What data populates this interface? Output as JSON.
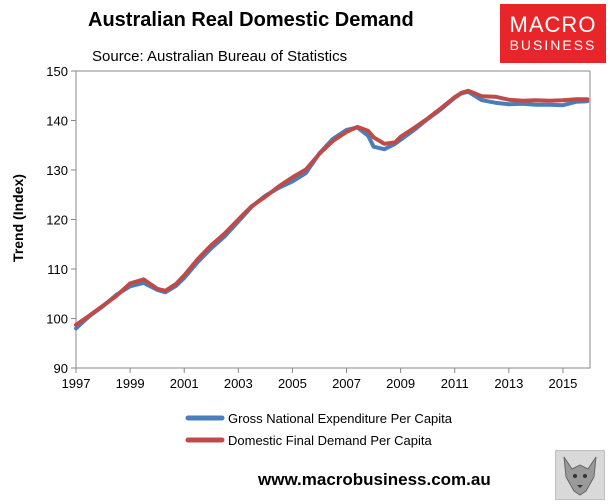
{
  "header": {
    "title": "Australian Real Domestic Demand",
    "subtitle": "Source: Australian Bureau of Statistics"
  },
  "logo": {
    "line1": "MACRO",
    "line2": "BUSINESS"
  },
  "footer": {
    "url": "www.macrobusiness.com.au"
  },
  "colors": {
    "gne": "#4a7ebb",
    "dfd": "#be4b48",
    "brand": "#e8262a"
  },
  "chart_data": {
    "type": "line",
    "title": "Australian Real Domestic Demand",
    "subtitle": "Source: Australian Bureau of Statistics",
    "xlabel": "",
    "ylabel": "Trend (Index)",
    "xlim": [
      1997,
      2016
    ],
    "ylim": [
      90,
      150
    ],
    "x_ticks": [
      "1997",
      "1999",
      "2001",
      "2003",
      "2005",
      "2007",
      "2009",
      "2011",
      "2013",
      "2015"
    ],
    "y_ticks": [
      "90",
      "100",
      "110",
      "120",
      "130",
      "140",
      "150"
    ],
    "grid": false,
    "legend": "bottom",
    "series": [
      {
        "name": "Gross National Expenditure Per Capita",
        "color": "#4a7ebb",
        "points": [
          [
            1997.0,
            98.0
          ],
          [
            1997.5,
            100.5
          ],
          [
            1998.0,
            102.5
          ],
          [
            1998.5,
            104.8
          ],
          [
            1999.0,
            106.5
          ],
          [
            1999.5,
            107.2
          ],
          [
            2000.0,
            105.8
          ],
          [
            2000.3,
            105.3
          ],
          [
            2000.7,
            106.6
          ],
          [
            2001.0,
            108.2
          ],
          [
            2001.5,
            111.4
          ],
          [
            2002.0,
            114.2
          ],
          [
            2002.5,
            116.6
          ],
          [
            2003.0,
            119.6
          ],
          [
            2003.5,
            122.6
          ],
          [
            2004.0,
            124.8
          ],
          [
            2004.5,
            126.4
          ],
          [
            2005.0,
            127.7
          ],
          [
            2005.5,
            129.4
          ],
          [
            2006.0,
            133.4
          ],
          [
            2006.5,
            136.3
          ],
          [
            2007.0,
            138.1
          ],
          [
            2007.4,
            138.6
          ],
          [
            2007.8,
            136.9
          ],
          [
            2008.0,
            134.7
          ],
          [
            2008.4,
            134.2
          ],
          [
            2008.8,
            135.3
          ],
          [
            2009.0,
            136.1
          ],
          [
            2009.5,
            138.1
          ],
          [
            2010.0,
            140.3
          ],
          [
            2010.5,
            142.3
          ],
          [
            2011.0,
            144.6
          ],
          [
            2011.25,
            145.5
          ],
          [
            2011.5,
            145.8
          ],
          [
            2012.0,
            144.1
          ],
          [
            2012.5,
            143.6
          ],
          [
            2013.0,
            143.3
          ],
          [
            2013.5,
            143.4
          ],
          [
            2014.0,
            143.2
          ],
          [
            2014.5,
            143.2
          ],
          [
            2015.0,
            143.1
          ],
          [
            2015.5,
            143.8
          ],
          [
            2015.9,
            143.9
          ]
        ]
      },
      {
        "name": "Domestic Final Demand Per Capita",
        "color": "#be4b48",
        "points": [
          [
            1997.0,
            98.7
          ],
          [
            1997.5,
            100.6
          ],
          [
            1998.0,
            102.6
          ],
          [
            1998.5,
            104.6
          ],
          [
            1999.0,
            107.1
          ],
          [
            1999.5,
            107.9
          ],
          [
            2000.0,
            106.0
          ],
          [
            2000.3,
            105.6
          ],
          [
            2000.7,
            107.0
          ],
          [
            2001.0,
            108.7
          ],
          [
            2001.5,
            112.0
          ],
          [
            2002.0,
            114.8
          ],
          [
            2002.5,
            117.2
          ],
          [
            2003.0,
            120.0
          ],
          [
            2003.5,
            122.7
          ],
          [
            2004.0,
            124.6
          ],
          [
            2004.5,
            126.7
          ],
          [
            2005.0,
            128.5
          ],
          [
            2005.5,
            130.1
          ],
          [
            2006.0,
            133.3
          ],
          [
            2006.5,
            135.9
          ],
          [
            2007.0,
            137.7
          ],
          [
            2007.4,
            138.7
          ],
          [
            2007.8,
            137.9
          ],
          [
            2008.0,
            136.6
          ],
          [
            2008.4,
            135.3
          ],
          [
            2008.8,
            135.6
          ],
          [
            2009.0,
            136.7
          ],
          [
            2009.5,
            138.5
          ],
          [
            2010.0,
            140.4
          ],
          [
            2010.5,
            142.5
          ],
          [
            2011.0,
            144.7
          ],
          [
            2011.25,
            145.6
          ],
          [
            2011.5,
            146.0
          ],
          [
            2012.0,
            144.9
          ],
          [
            2012.5,
            144.8
          ],
          [
            2013.0,
            144.2
          ],
          [
            2013.5,
            144.0
          ],
          [
            2014.0,
            144.1
          ],
          [
            2014.5,
            144.0
          ],
          [
            2015.0,
            144.1
          ],
          [
            2015.5,
            144.3
          ],
          [
            2015.9,
            144.3
          ]
        ]
      }
    ]
  }
}
